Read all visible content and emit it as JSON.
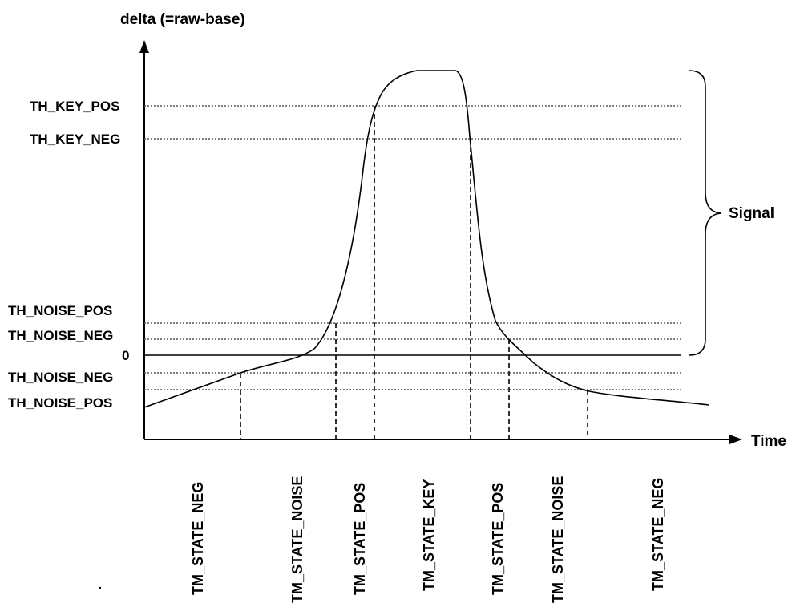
{
  "diagram": {
    "y_axis_label": "delta (=raw-base)",
    "x_axis_label": "Time",
    "brace_label": "Signal",
    "threshold_labels": {
      "key_pos": "TH_KEY_POS",
      "key_neg": "TH_KEY_NEG",
      "noise_pos_upper": "TH_NOISE_POS",
      "noise_neg_upper": "TH_NOISE_NEG",
      "zero": "0",
      "noise_neg_lower": "TH_NOISE_NEG",
      "noise_pos_lower": "TH_NOISE_POS"
    },
    "states": [
      "TM_STATE_NEG",
      "TM_STATE_NOISE",
      "TM_STATE_POS",
      "TM_STATE_KEY",
      "TM_STATE_POS",
      "TM_STATE_NOISE",
      "TM_STATE_NEG"
    ]
  }
}
